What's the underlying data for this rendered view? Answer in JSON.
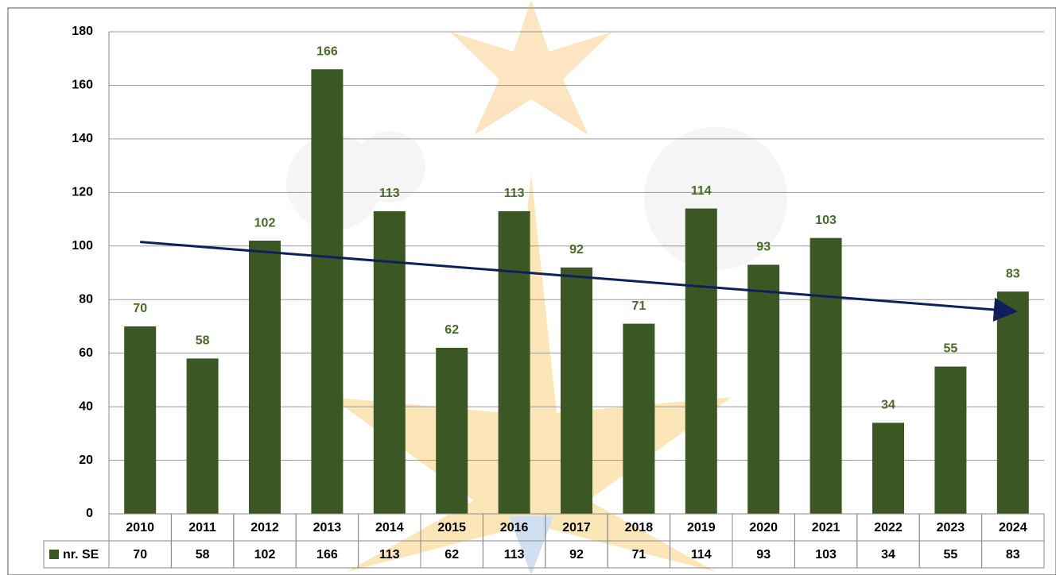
{
  "chart_data": {
    "type": "bar",
    "categories": [
      "2010",
      "2011",
      "2012",
      "2013",
      "2014",
      "2015",
      "2016",
      "2017",
      "2018",
      "2019",
      "2020",
      "2021",
      "2022",
      "2023",
      "2024"
    ],
    "series": [
      {
        "name": "nr. SE",
        "color": "#3b5724",
        "values": [
          70,
          58,
          102,
          166,
          113,
          62,
          113,
          92,
          71,
          114,
          93,
          103,
          34,
          55,
          83
        ]
      }
    ],
    "ylim": [
      0,
      180
    ],
    "yticks": [
      0,
      20,
      40,
      60,
      80,
      100,
      120,
      140,
      160,
      180
    ],
    "grid": true,
    "trendline": true,
    "trendline_color": "#0f1f5a",
    "data_table": true
  }
}
